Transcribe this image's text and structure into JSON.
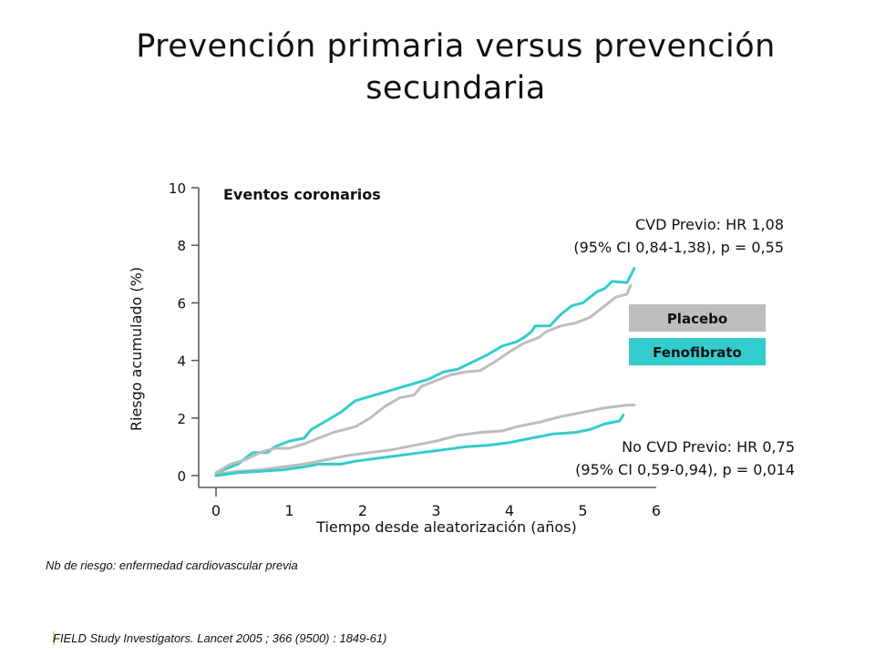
{
  "title": {
    "line1": "Prevención  primaria versus prevención",
    "line2": "secundaria"
  },
  "colors": {
    "placebo": "#bdbdbd",
    "fenofibrato": "#33cccc",
    "axis": "#555555"
  },
  "chart_data": {
    "type": "line",
    "subtitle": "Eventos coronarios",
    "xlabel": "Tiempo desde aleatorización (años)",
    "ylabel": "Riesgo acumulado (%)",
    "xlim": [
      0,
      6
    ],
    "ylim": [
      0,
      10
    ],
    "xticks": [
      "0",
      "1",
      "2",
      "3",
      "4",
      "5",
      "6"
    ],
    "yticks": [
      "0",
      "2",
      "4",
      "6",
      "8",
      "10"
    ],
    "grid": false,
    "legend": {
      "placement": "right",
      "items": [
        {
          "label": "Placebo",
          "color": "#bdbdbd"
        },
        {
          "label": "Fenofibrato",
          "color": "#33cccc"
        }
      ]
    },
    "annotations": {
      "cvd_line1": "CVD Previo: HR 1,08",
      "cvd_line2": "(95% CI 0,84-1,38), p = 0,55",
      "nocvd_line1": "No CVD Previo: HR 0,75",
      "nocvd_line2": "(95% CI 0,59-0,94), p = 0,014"
    },
    "series": [
      {
        "group": "CVD previo",
        "arm": "Fenofibrato",
        "color": "#33cccc",
        "points": [
          [
            0,
            0.05
          ],
          [
            0.1,
            0.2
          ],
          [
            0.3,
            0.4
          ],
          [
            0.5,
            0.8
          ],
          [
            0.7,
            0.8
          ],
          [
            0.8,
            1.0
          ],
          [
            1.0,
            1.2
          ],
          [
            1.2,
            1.3
          ],
          [
            1.3,
            1.6
          ],
          [
            1.5,
            1.9
          ],
          [
            1.7,
            2.2
          ],
          [
            1.9,
            2.6
          ],
          [
            2.1,
            2.75
          ],
          [
            2.3,
            2.9
          ],
          [
            2.5,
            3.05
          ],
          [
            2.7,
            3.2
          ],
          [
            2.9,
            3.35
          ],
          [
            3.1,
            3.6
          ],
          [
            3.3,
            3.7
          ],
          [
            3.5,
            3.95
          ],
          [
            3.7,
            4.2
          ],
          [
            3.9,
            4.5
          ],
          [
            4.1,
            4.65
          ],
          [
            4.2,
            4.8
          ],
          [
            4.3,
            5.0
          ],
          [
            4.35,
            5.2
          ],
          [
            4.55,
            5.2
          ],
          [
            4.7,
            5.6
          ],
          [
            4.85,
            5.9
          ],
          [
            5.0,
            6.0
          ],
          [
            5.1,
            6.2
          ],
          [
            5.2,
            6.4
          ],
          [
            5.3,
            6.5
          ],
          [
            5.4,
            6.75
          ],
          [
            5.6,
            6.7
          ],
          [
            5.7,
            7.2
          ]
        ]
      },
      {
        "group": "CVD previo",
        "arm": "Placebo",
        "color": "#bdbdbd",
        "points": [
          [
            0,
            0.1
          ],
          [
            0.2,
            0.4
          ],
          [
            0.4,
            0.55
          ],
          [
            0.6,
            0.8
          ],
          [
            0.8,
            0.95
          ],
          [
            1.0,
            0.95
          ],
          [
            1.2,
            1.1
          ],
          [
            1.4,
            1.3
          ],
          [
            1.6,
            1.5
          ],
          [
            1.75,
            1.6
          ],
          [
            1.9,
            1.7
          ],
          [
            2.1,
            2.0
          ],
          [
            2.3,
            2.4
          ],
          [
            2.5,
            2.7
          ],
          [
            2.7,
            2.8
          ],
          [
            2.8,
            3.1
          ],
          [
            3.0,
            3.3
          ],
          [
            3.2,
            3.5
          ],
          [
            3.4,
            3.6
          ],
          [
            3.6,
            3.65
          ],
          [
            3.8,
            3.95
          ],
          [
            4.0,
            4.3
          ],
          [
            4.2,
            4.6
          ],
          [
            4.4,
            4.8
          ],
          [
            4.5,
            5.0
          ],
          [
            4.7,
            5.2
          ],
          [
            4.9,
            5.3
          ],
          [
            5.1,
            5.5
          ],
          [
            5.3,
            5.9
          ],
          [
            5.45,
            6.2
          ],
          [
            5.6,
            6.3
          ],
          [
            5.65,
            6.6
          ]
        ]
      },
      {
        "group": "No CVD previo",
        "arm": "Placebo",
        "color": "#bdbdbd",
        "points": [
          [
            0,
            0.05
          ],
          [
            0.3,
            0.15
          ],
          [
            0.6,
            0.2
          ],
          [
            0.9,
            0.3
          ],
          [
            1.2,
            0.4
          ],
          [
            1.5,
            0.55
          ],
          [
            1.8,
            0.7
          ],
          [
            2.1,
            0.8
          ],
          [
            2.4,
            0.9
          ],
          [
            2.7,
            1.05
          ],
          [
            3.0,
            1.2
          ],
          [
            3.3,
            1.4
          ],
          [
            3.6,
            1.5
          ],
          [
            3.9,
            1.55
          ],
          [
            4.1,
            1.7
          ],
          [
            4.4,
            1.85
          ],
          [
            4.7,
            2.05
          ],
          [
            5.0,
            2.2
          ],
          [
            5.3,
            2.35
          ],
          [
            5.6,
            2.45
          ],
          [
            5.7,
            2.45
          ]
        ]
      },
      {
        "group": "No CVD previo",
        "arm": "Fenofibrato",
        "color": "#33cccc",
        "points": [
          [
            0,
            0.0
          ],
          [
            0.3,
            0.1
          ],
          [
            0.6,
            0.15
          ],
          [
            0.9,
            0.2
          ],
          [
            1.2,
            0.3
          ],
          [
            1.4,
            0.4
          ],
          [
            1.7,
            0.4
          ],
          [
            1.9,
            0.5
          ],
          [
            2.2,
            0.6
          ],
          [
            2.5,
            0.7
          ],
          [
            2.8,
            0.8
          ],
          [
            3.1,
            0.9
          ],
          [
            3.4,
            1.0
          ],
          [
            3.7,
            1.05
          ],
          [
            4.0,
            1.15
          ],
          [
            4.3,
            1.3
          ],
          [
            4.6,
            1.45
          ],
          [
            4.9,
            1.5
          ],
          [
            5.1,
            1.6
          ],
          [
            5.3,
            1.8
          ],
          [
            5.5,
            1.9
          ],
          [
            5.55,
            2.1
          ]
        ]
      }
    ]
  },
  "footnote": "Nb de riesgo: enfermedad cardiovascular previa",
  "citation": "FIELD Study Investigators. Lancet 2005 ; 366 (9500) : 1849-61)"
}
